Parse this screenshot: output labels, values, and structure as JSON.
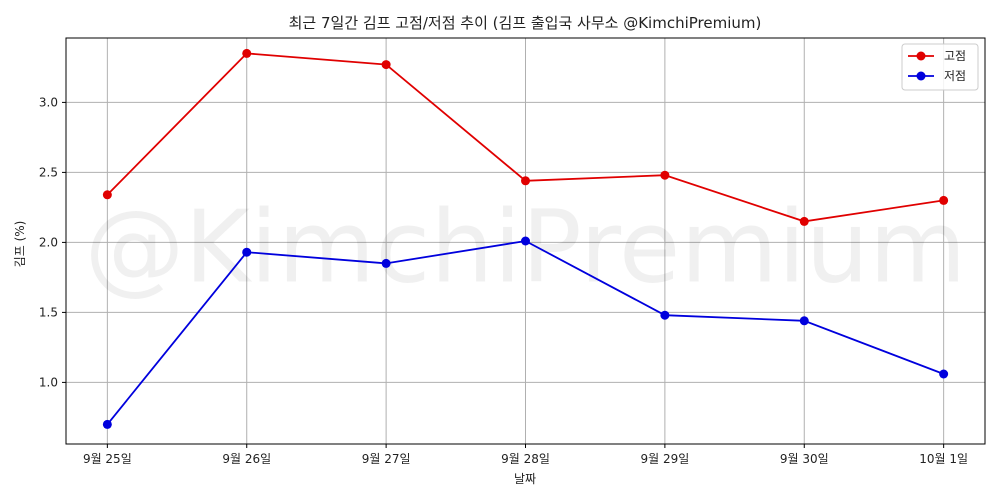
{
  "chart_data": {
    "type": "line",
    "title": "최근 7일간 김프 고점/저점 추이 (김프 출입국 사무소 @KimchiPremium)",
    "xlabel": "날짜",
    "ylabel": "김프 (%)",
    "categories": [
      "9월 25일",
      "9월 26일",
      "9월 27일",
      "9월 28일",
      "9월 29일",
      "9월 30일",
      "10월 1일"
    ],
    "series": [
      {
        "name": "고점",
        "color": "#e00000",
        "values": [
          2.34,
          3.35,
          3.27,
          2.44,
          2.48,
          2.15,
          2.3
        ]
      },
      {
        "name": "저점",
        "color": "#0000dd",
        "values": [
          0.7,
          1.93,
          1.85,
          2.01,
          1.48,
          1.44,
          1.06
        ]
      }
    ],
    "ylim": [
      0.56,
      3.46
    ],
    "yticks": [
      1.0,
      1.5,
      2.0,
      2.5,
      3.0
    ],
    "ytick_labels": [
      "1.0",
      "1.5",
      "2.0",
      "2.5",
      "3.0"
    ],
    "grid": true,
    "legend_position": "top-right",
    "watermark": "@KimchiPremium"
  }
}
